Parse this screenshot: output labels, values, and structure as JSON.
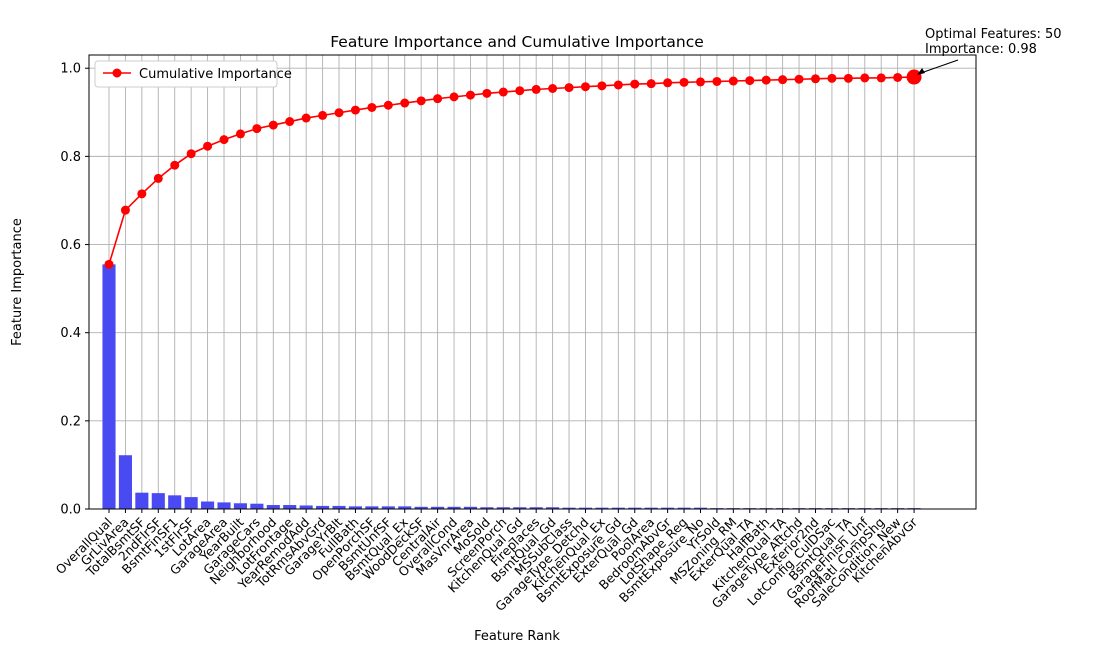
{
  "chart_data": {
    "type": "bar",
    "title": "Feature Importance and Cumulative Importance",
    "xlabel": "Feature Rank",
    "ylabel": "Feature Importance",
    "ylim": [
      0,
      1.03
    ],
    "yticks": [
      "0.0",
      "0.2",
      "0.4",
      "0.6",
      "0.8",
      "1.0"
    ],
    "grid": true,
    "legend_position": "top-left",
    "bar_color": "#4a4af2",
    "line_color": "#ff0000",
    "categories": [
      "OverallQual",
      "GrLivArea",
      "TotalBsmtSF",
      "2ndFlrSF",
      "BsmtFinSF1",
      "1stFlrSF",
      "LotArea",
      "GarageArea",
      "YearBuilt",
      "GarageCars",
      "Neighborhood",
      "LotFrontage",
      "YearRemodAdd",
      "TotRmsAbvGrd",
      "GarageYrBlt",
      "FullBath",
      "OpenPorchSF",
      "BsmtUnfSF",
      "BsmtQual_Ex",
      "WoodDeckSF",
      "CentralAir",
      "OverallCond",
      "MasVnrArea",
      "MoSold",
      "ScreenPorch",
      "KitchenQual_Gd",
      "Fireplaces",
      "BsmtQual_Gd",
      "MSSubClass",
      "GarageType_Detchd",
      "KitchenQual_Ex",
      "BsmtExposure_Gd",
      "ExterQual_Gd",
      "PoolArea",
      "BedroomAbvGr",
      "LotShape_Reg",
      "BsmtExposure_No",
      "YrSold",
      "MSZoning_RM",
      "ExterQual_TA",
      "HalfBath",
      "KitchenQual_TA",
      "GarageType_Attchd",
      "Exterior2nd",
      "LotConfig_CulDSac",
      "BsmtQual_TA",
      "GarageFinish_Unf",
      "RoofMatl_CompShg",
      "SaleCondition_New",
      "KitchenAbvGr"
    ],
    "series": [
      {
        "name": "",
        "type": "bar",
        "values": [
          0.555,
          0.122,
          0.037,
          0.036,
          0.031,
          0.027,
          0.017,
          0.015,
          0.013,
          0.012,
          0.009,
          0.009,
          0.008,
          0.007,
          0.007,
          0.006,
          0.006,
          0.006,
          0.006,
          0.005,
          0.005,
          0.005,
          0.005,
          0.004,
          0.004,
          0.004,
          0.004,
          0.004,
          0.003,
          0.003,
          0.003,
          0.003,
          0.003,
          0.003,
          0.003,
          0.003,
          0.003,
          0.002,
          0.002,
          0.002,
          0.002,
          0.002,
          0.002,
          0.002,
          0.002,
          0.002,
          0.002,
          0.002,
          0.002,
          0.002
        ]
      },
      {
        "name": "Cumulative Importance",
        "type": "line",
        "values": [
          0.555,
          0.678,
          0.715,
          0.75,
          0.78,
          0.806,
          0.823,
          0.838,
          0.851,
          0.863,
          0.871,
          0.879,
          0.887,
          0.893,
          0.899,
          0.905,
          0.911,
          0.916,
          0.921,
          0.926,
          0.931,
          0.935,
          0.939,
          0.943,
          0.946,
          0.949,
          0.952,
          0.954,
          0.956,
          0.958,
          0.96,
          0.962,
          0.964,
          0.965,
          0.967,
          0.968,
          0.969,
          0.97,
          0.971,
          0.972,
          0.973,
          0.974,
          0.975,
          0.976,
          0.977,
          0.977,
          0.978,
          0.978,
          0.979,
          0.98
        ]
      }
    ],
    "annotation": {
      "line1": "Optimal Features: 50",
      "line2": "Importance: 0.98",
      "target_index": 49,
      "target_value": 0.98
    }
  }
}
